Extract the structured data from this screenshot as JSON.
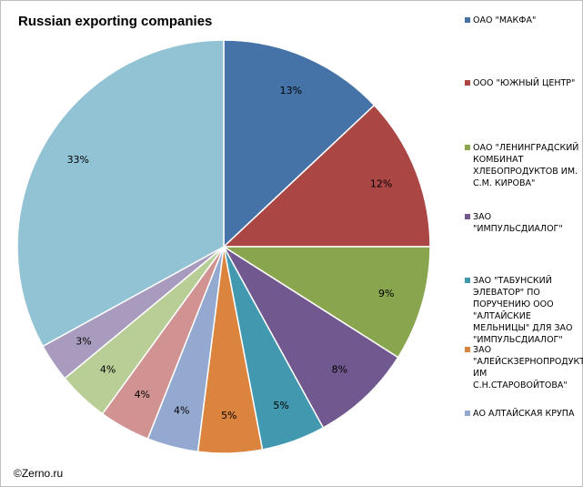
{
  "credit": "©Zerno.ru",
  "chart_data": {
    "type": "pie",
    "title": "Russian exporting companies",
    "slices": [
      {
        "name": "ОАО \"МАКФА\"",
        "value": 13,
        "label": "13%",
        "color": "#4572a7"
      },
      {
        "name": "ООО \"ЮЖНЫЙ ЦЕНТР\"",
        "value": 12,
        "label": "12%",
        "color": "#aa4643"
      },
      {
        "name": "ОАО \"ЛЕНИНГРАДСКИЙ КОМБИНАТ ХЛЕБОПРОДУКТОВ ИМ. С.М. КИРОВА\"",
        "value": 9,
        "label": "9%",
        "color": "#89a54e"
      },
      {
        "name": "ЗАО \"ИМПУЛЬСДИАЛОГ\"",
        "value": 8,
        "label": "8%",
        "color": "#71588f"
      },
      {
        "name": "ЗАО \"ТАБУНСКИЙ ЭЛЕВАТОР\" ПО ПОРУЧЕНИЮ ООО \"АЛТАЙСКИЕ МЕЛЬНИЦЫ\" ДЛЯ ЗАО \"ИМПУЛЬСДИАЛОГ\"",
        "value": 5,
        "label": "5%",
        "color": "#4198af"
      },
      {
        "name": "ЗАО \"АЛЕЙСКЗЕРНОПРОДУКТ ИМ С.Н.СТАРОВОЙТОВА\"",
        "value": 5,
        "label": "5%",
        "color": "#db843d"
      },
      {
        "name": "АО АЛТАЙСКАЯ КРУПА",
        "value": 4,
        "label": "4%",
        "color": "#93a9cf"
      },
      {
        "name": "",
        "value": 4,
        "label": "4%",
        "color": "#d19392"
      },
      {
        "name": "",
        "value": 4,
        "label": "4%",
        "color": "#b9cd96"
      },
      {
        "name": "",
        "value": 3,
        "label": "3%",
        "color": "#a99bbd"
      },
      {
        "name": "",
        "value": 33,
        "label": "33%",
        "color": "#92c3d5"
      }
    ],
    "legend_position": "right"
  }
}
